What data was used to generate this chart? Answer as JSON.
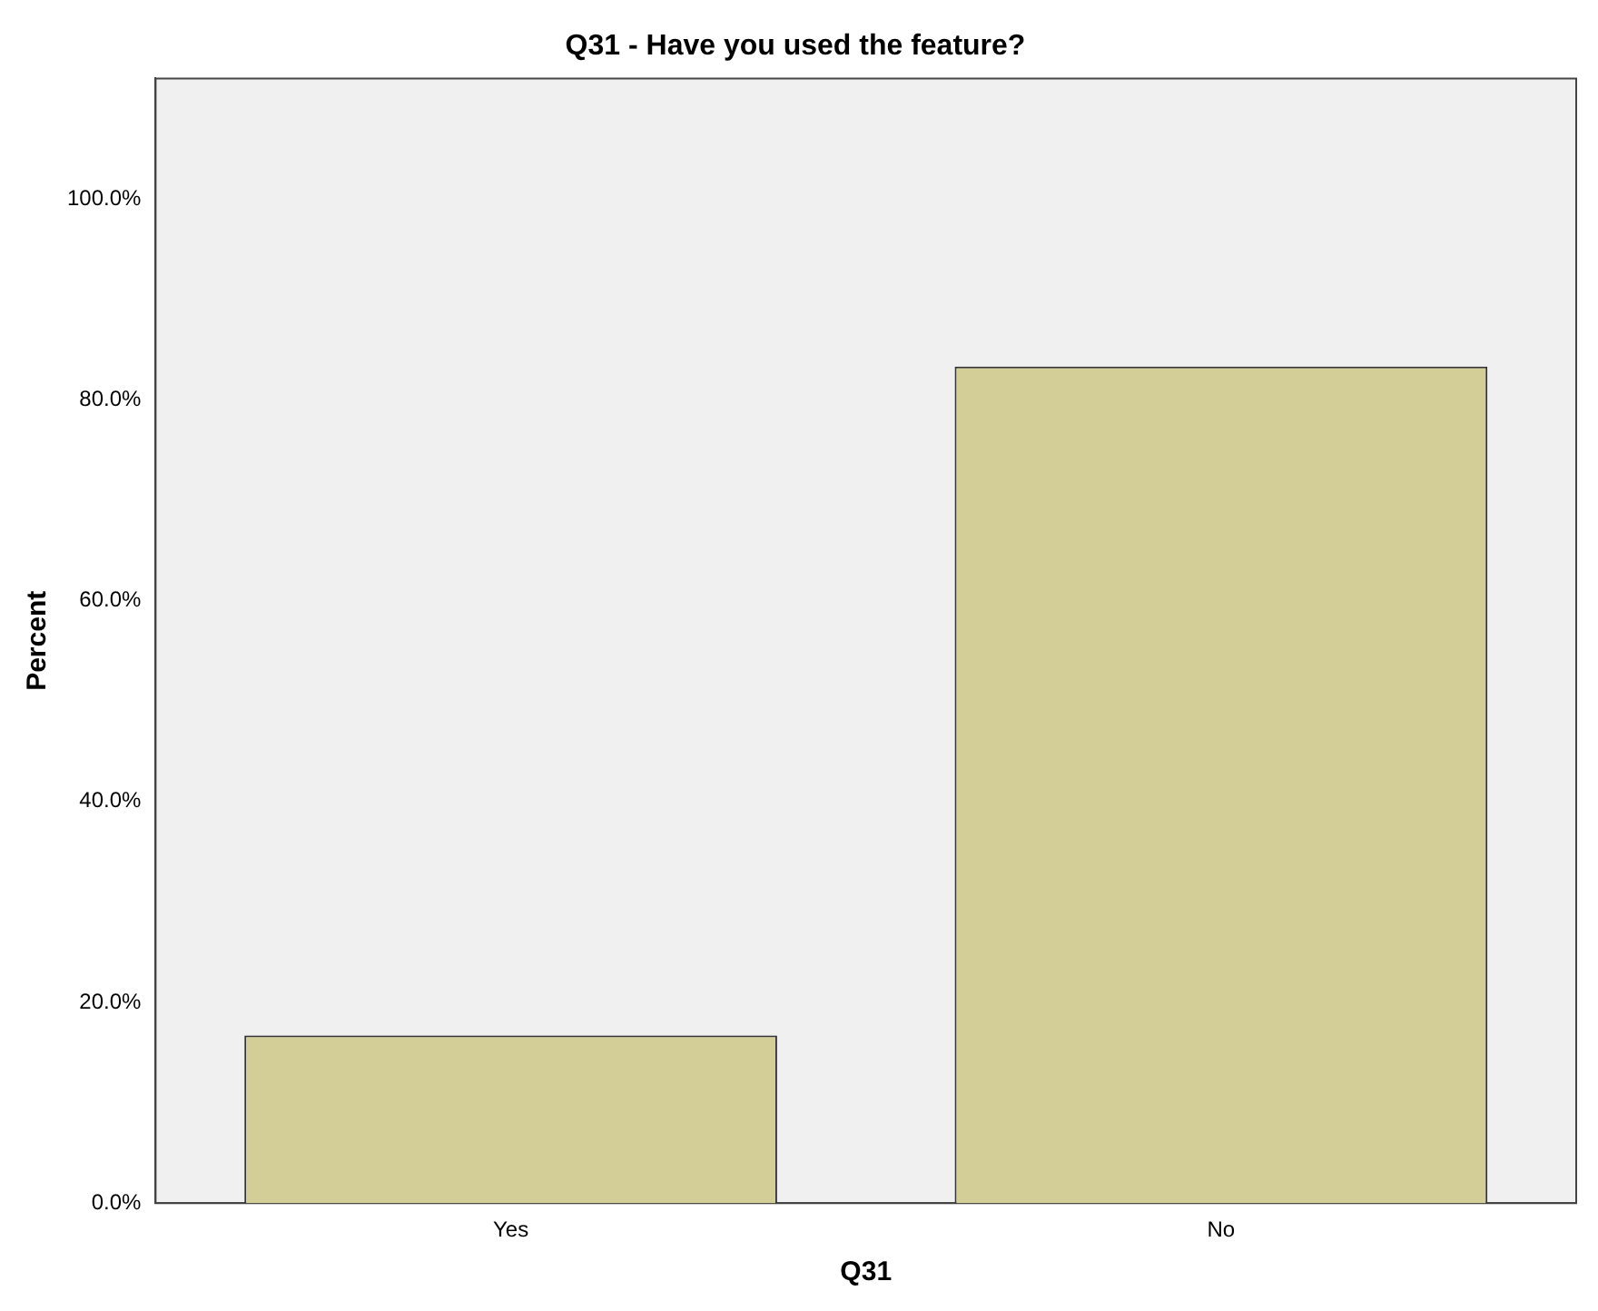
{
  "chart_data": {
    "type": "bar",
    "title": "Q31 - Have you used the feature?",
    "xlabel": "Q31",
    "ylabel": "Percent",
    "categories": [
      "Yes",
      "No"
    ],
    "values": [
      16.7,
      83.3
    ],
    "color": "#d3cd98",
    "ylim": [
      0,
      112
    ],
    "yticks": [
      {
        "value": 0,
        "label": "0.0%"
      },
      {
        "value": 20,
        "label": "20.0%"
      },
      {
        "value": 40,
        "label": "40.0%"
      },
      {
        "value": 60,
        "label": "60.0%"
      },
      {
        "value": 80,
        "label": "80.0%"
      },
      {
        "value": 100,
        "label": "100.0%"
      }
    ],
    "grid": false,
    "legend": false
  }
}
